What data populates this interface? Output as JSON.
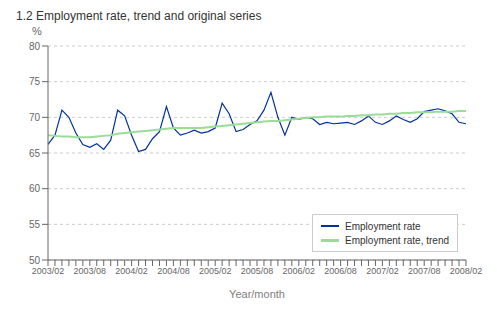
{
  "chart_data": {
    "type": "line",
    "title": "1.2 Employment rate, trend and original series",
    "xlabel": "Year/month",
    "ylabel": "%",
    "ylim": [
      50,
      80
    ],
    "yticks": [
      50,
      55,
      60,
      65,
      70,
      75,
      80
    ],
    "grid": true,
    "legend": "lower right",
    "categories": [
      "2003/02",
      null,
      null,
      null,
      null,
      null,
      "2003/08",
      null,
      null,
      null,
      null,
      null,
      "2004/02",
      null,
      null,
      null,
      null,
      null,
      "2004/08",
      null,
      null,
      null,
      null,
      null,
      "2005/02",
      null,
      null,
      null,
      null,
      null,
      "2005/08",
      null,
      null,
      null,
      null,
      null,
      "2006/02",
      null,
      null,
      null,
      null,
      null,
      "2006/08",
      null,
      null,
      null,
      null,
      null,
      "2007/02",
      null,
      null,
      null,
      null,
      null,
      "2007/08",
      null,
      null,
      null,
      null,
      null,
      "2008/02"
    ],
    "series": [
      {
        "name": "Employment rate",
        "color": "#003399",
        "values": [
          66.2,
          67.5,
          71.0,
          70.0,
          67.8,
          66.2,
          65.8,
          66.3,
          65.5,
          66.8,
          71.0,
          70.2,
          67.5,
          65.2,
          65.5,
          67.0,
          68.0,
          71.5,
          68.5,
          67.5,
          67.8,
          68.2,
          67.8,
          68.0,
          68.5,
          72.0,
          70.5,
          68.0,
          68.3,
          69.0,
          69.5,
          71.0,
          73.5,
          70.0,
          67.5,
          70.0,
          69.7,
          70.0,
          69.8,
          69.0,
          69.3,
          69.1,
          69.2,
          69.3,
          69.0,
          69.5,
          70.2,
          69.3,
          69.0,
          69.5,
          70.2,
          69.7,
          69.3,
          69.8,
          70.8,
          71.0,
          71.2,
          70.9,
          70.5,
          69.3,
          69.1
        ]
      },
      {
        "name": "Employment rate, trend",
        "color": "#99dd99",
        "values": [
          67.5,
          67.4,
          67.3,
          67.3,
          67.2,
          67.2,
          67.2,
          67.3,
          67.4,
          67.5,
          67.7,
          67.8,
          67.9,
          68.0,
          68.1,
          68.2,
          68.3,
          68.4,
          68.5,
          68.5,
          68.5,
          68.5,
          68.5,
          68.6,
          68.7,
          68.8,
          68.9,
          69.0,
          69.1,
          69.2,
          69.3,
          69.4,
          69.5,
          69.5,
          69.6,
          69.7,
          69.8,
          69.9,
          70.0,
          70.0,
          70.1,
          70.1,
          70.1,
          70.2,
          70.2,
          70.3,
          70.3,
          70.4,
          70.4,
          70.5,
          70.5,
          70.6,
          70.6,
          70.7,
          70.7,
          70.7,
          70.8,
          70.8,
          70.8,
          70.9,
          70.9
        ]
      }
    ]
  }
}
